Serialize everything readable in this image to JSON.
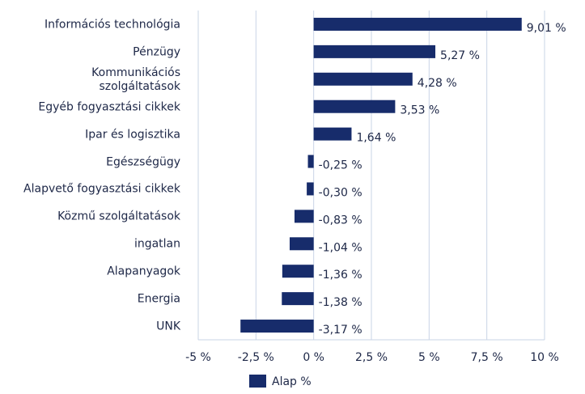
{
  "chart_data": {
    "type": "bar",
    "orientation": "horizontal",
    "categories": [
      "Információs technológia",
      "Pénzügy",
      "Kommunikációs\nszolgáltatások",
      "Egyéb fogyasztási cikkek",
      "Ipar és logisztika",
      "Egészségügy",
      "Alapvető fogyasztási cikkek",
      "Közmű szolgáltatások",
      "ingatlan",
      "Alapanyagok",
      "Energia",
      "UNK"
    ],
    "series": [
      {
        "name": "Alap %",
        "color": "#172c6b",
        "values": [
          9.01,
          5.27,
          4.28,
          3.53,
          1.64,
          -0.25,
          -0.3,
          -0.83,
          -1.04,
          -1.36,
          -1.38,
          -3.17
        ],
        "value_labels": [
          "9,01 %",
          "5,27 %",
          "4,28 %",
          "3,53 %",
          "1,64 %",
          "-0,25 %",
          "-0,30 %",
          "-0,83 %",
          "-1,04 %",
          "-1,36 %",
          "-1,38 %",
          "-3,17 %"
        ]
      }
    ],
    "xlim": [
      -5,
      10
    ],
    "xticks": [
      {
        "value": -5,
        "label": "-5 %"
      },
      {
        "value": -2.5,
        "label": "-2,5 %"
      },
      {
        "value": 0,
        "label": "0 %"
      },
      {
        "value": 2.5,
        "label": "2,5 %"
      },
      {
        "value": 5,
        "label": "5 %"
      },
      {
        "value": 7.5,
        "label": "7,5 %"
      },
      {
        "value": 10,
        "label": "10 %"
      }
    ],
    "grid": true,
    "legend": "bottom"
  }
}
